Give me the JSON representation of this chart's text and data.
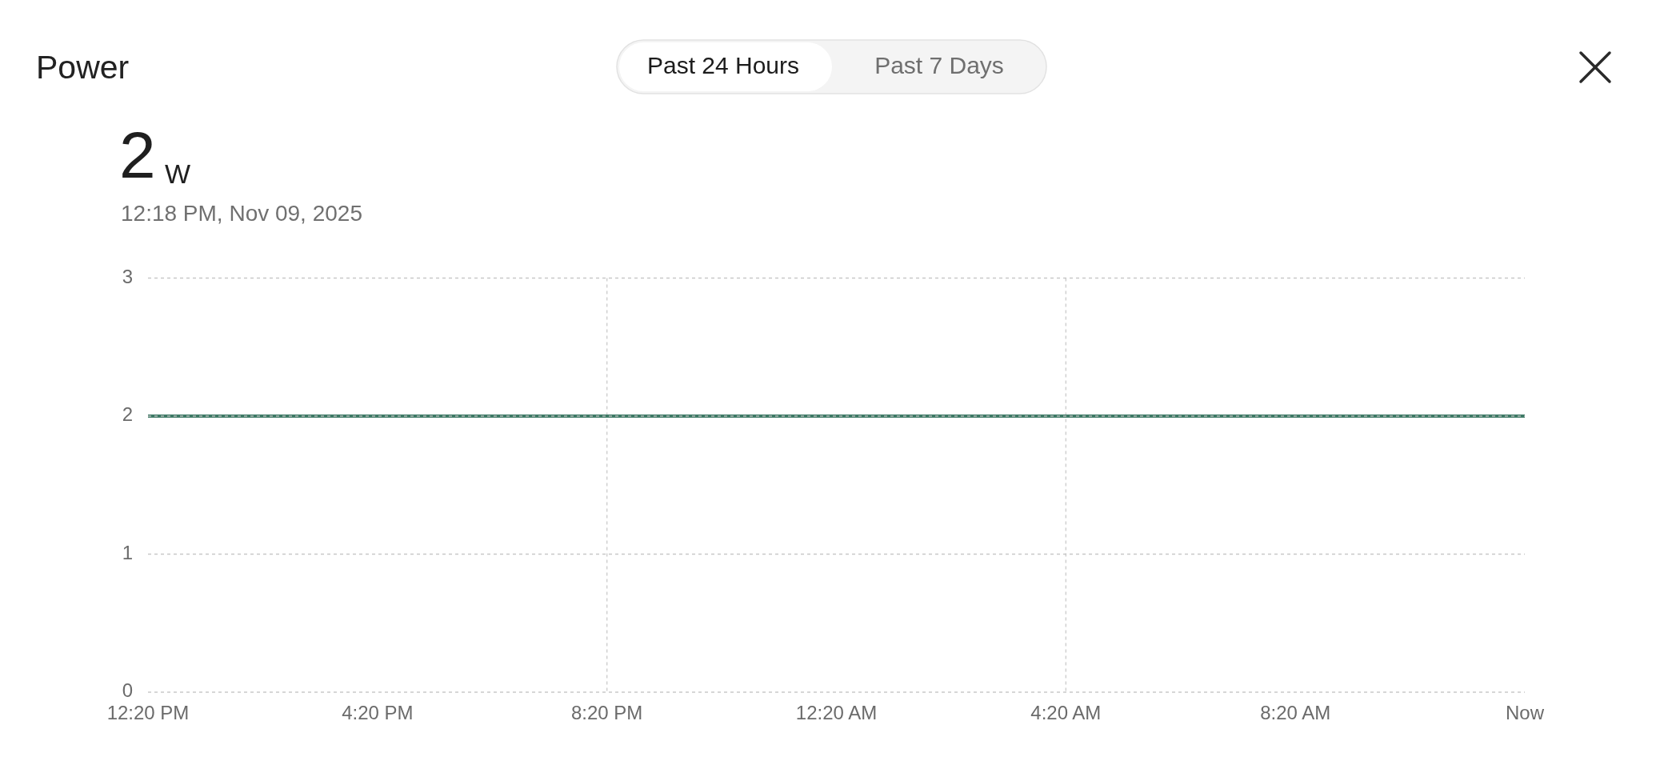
{
  "chart_data": {
    "type": "line",
    "title": "Power",
    "annotations": [
      "Past 24 Hours",
      "Past 7 Days",
      "2",
      "W",
      "12:18 PM, Nov 09, 2025"
    ],
    "series": [
      {
        "color": "#3e7a66",
        "x": [
          "2025-11-08T12:20",
          "2025-11-09T12:20"
        ],
        "values": [
          2,
          2
        ]
      }
    ],
    "xlim": [
      "2025-11-08T12:20",
      "2025-11-09T12:20"
    ],
    "xticks": [
      {
        "value": "2025-11-08T12:20",
        "label": "12:20 PM"
      },
      {
        "value": "2025-11-08T16:20",
        "label": "4:20 PM"
      },
      {
        "value": "2025-11-08T20:20",
        "label": "8:20 PM"
      },
      {
        "value": "2025-11-09T00:20",
        "label": "12:20 AM"
      },
      {
        "value": "2025-11-09T04:20",
        "label": "4:20 AM"
      },
      {
        "value": "2025-11-09T08:20",
        "label": "8:20 AM"
      },
      {
        "value": "2025-11-09T12:20",
        "label": "Now"
      }
    ],
    "ylim": [
      0,
      3
    ],
    "yticks": [
      0,
      1,
      2,
      3
    ],
    "grid": "y",
    "ref_lines": [
      {
        "axis": "x",
        "value": "2025-11-08T20:20",
        "color": "#d0d0d0",
        "line_style": "dashed"
      },
      {
        "axis": "x",
        "value": "2025-11-09T04:20",
        "color": "#d0d0d0",
        "line_style": "dashed"
      }
    ]
  }
}
